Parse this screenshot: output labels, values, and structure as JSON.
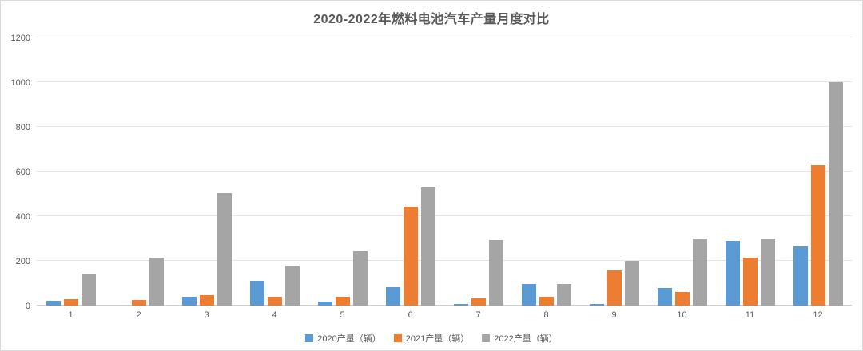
{
  "chart_data": {
    "type": "bar",
    "title": "2020-2022年燃料电池汽车产量月度对比",
    "categories": [
      "1",
      "2",
      "3",
      "4",
      "5",
      "6",
      "7",
      "8",
      "9",
      "10",
      "11",
      "12"
    ],
    "series": [
      {
        "name": "2020产量（辆）",
        "color": "#5B9BD5",
        "values": [
          20,
          0,
          40,
          110,
          18,
          81,
          7,
          97,
          8,
          78,
          288,
          263
        ]
      },
      {
        "name": "2021产量（辆）",
        "color": "#ED7D31",
        "values": [
          28,
          26,
          45,
          38,
          38,
          443,
          31,
          38,
          156,
          59,
          214,
          627
        ]
      },
      {
        "name": "2022产量（辆）",
        "color": "#A5A5A5",
        "values": [
          142,
          213,
          503,
          178,
          243,
          527,
          292,
          97,
          199,
          301,
          299,
          1000
        ]
      }
    ],
    "xlabel": "",
    "ylabel": "",
    "ylim": [
      0,
      1200
    ],
    "yticks": [
      0,
      200,
      400,
      600,
      800,
      1000,
      1200
    ],
    "grid": true,
    "legend_position": "bottom"
  },
  "colors": {
    "card_border": "#d9d9d9",
    "gridline": "#e5e5e5",
    "axis_line": "#d0d0d0",
    "text": "#595959"
  }
}
